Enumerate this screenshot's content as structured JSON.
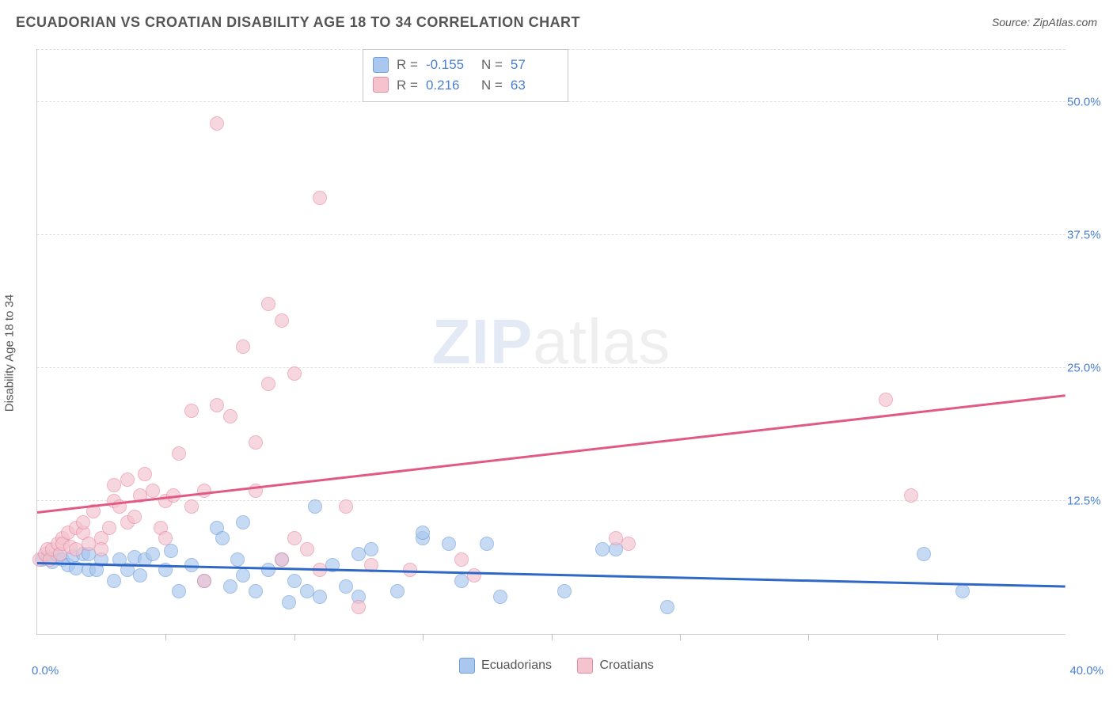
{
  "title": "ECUADORIAN VS CROATIAN DISABILITY AGE 18 TO 34 CORRELATION CHART",
  "source_prefix": "Source: ",
  "source_name": "ZipAtlas.com",
  "y_axis_title": "Disability Age 18 to 34",
  "watermark_left": "ZIP",
  "watermark_right": "atlas",
  "chart": {
    "type": "scatter",
    "xlim": [
      0,
      40
    ],
    "ylim": [
      0,
      55
    ],
    "x_origin_label": "0.0%",
    "x_max_label": "40.0%",
    "y_ticks": [
      12.5,
      25.0,
      37.5,
      50.0
    ],
    "y_tick_labels": [
      "12.5%",
      "25.0%",
      "37.5%",
      "50.0%"
    ],
    "x_minor_ticks": [
      5,
      10,
      15,
      20,
      25,
      30,
      35
    ],
    "background_color": "#ffffff",
    "grid_color": "#e0e0e0",
    "axis_color": "#d0d0d0",
    "tick_label_color": "#4a7fd4",
    "marker_radius": 9,
    "marker_opacity": 0.35,
    "series": [
      {
        "name": "Ecuadorians",
        "fill": "#a9c7ef",
        "stroke": "#6f9ed9",
        "trend_color": "#2f68c6",
        "R": "-0.155",
        "N": "57",
        "trend": {
          "x1": 0,
          "y1": 6.8,
          "x2": 40,
          "y2": 4.6
        },
        "points": [
          [
            0.2,
            7.0
          ],
          [
            0.4,
            7.2
          ],
          [
            0.6,
            6.8
          ],
          [
            0.8,
            7.4
          ],
          [
            1.0,
            7.0
          ],
          [
            1.2,
            6.5
          ],
          [
            1.4,
            7.3
          ],
          [
            1.5,
            6.2
          ],
          [
            1.8,
            7.5
          ],
          [
            2.0,
            7.5
          ],
          [
            2.0,
            6.0
          ],
          [
            2.3,
            6.0
          ],
          [
            2.5,
            7.0
          ],
          [
            3.0,
            5.0
          ],
          [
            3.2,
            7.0
          ],
          [
            3.5,
            6.0
          ],
          [
            3.8,
            7.2
          ],
          [
            4.0,
            5.5
          ],
          [
            4.2,
            7.0
          ],
          [
            4.5,
            7.5
          ],
          [
            5.0,
            6.0
          ],
          [
            5.2,
            7.8
          ],
          [
            5.5,
            4.0
          ],
          [
            6.0,
            6.5
          ],
          [
            6.5,
            5.0
          ],
          [
            7.0,
            10.0
          ],
          [
            7.2,
            9.0
          ],
          [
            7.5,
            4.5
          ],
          [
            7.8,
            7.0
          ],
          [
            8.0,
            5.5
          ],
          [
            8.0,
            10.5
          ],
          [
            8.5,
            4.0
          ],
          [
            9.0,
            6.0
          ],
          [
            9.5,
            7.0
          ],
          [
            9.8,
            3.0
          ],
          [
            10.0,
            5.0
          ],
          [
            10.5,
            4.0
          ],
          [
            10.8,
            12.0
          ],
          [
            11.0,
            3.5
          ],
          [
            11.5,
            6.5
          ],
          [
            12.0,
            4.5
          ],
          [
            12.5,
            3.5
          ],
          [
            12.5,
            7.5
          ],
          [
            13.0,
            8.0
          ],
          [
            14.0,
            4.0
          ],
          [
            15.0,
            9.0
          ],
          [
            15.0,
            9.5
          ],
          [
            16.0,
            8.5
          ],
          [
            16.5,
            5.0
          ],
          [
            17.5,
            8.5
          ],
          [
            18.0,
            3.5
          ],
          [
            20.5,
            4.0
          ],
          [
            22.0,
            8.0
          ],
          [
            22.5,
            8.0
          ],
          [
            24.5,
            2.5
          ],
          [
            34.5,
            7.5
          ],
          [
            36.0,
            4.0
          ]
        ]
      },
      {
        "name": "Croatians",
        "fill": "#f4c3ce",
        "stroke": "#e88ba2",
        "trend_color": "#e05a84",
        "R": "0.216",
        "N": "63",
        "trend": {
          "x1": 0,
          "y1": 11.5,
          "x2": 40,
          "y2": 22.5
        },
        "points": [
          [
            0.1,
            7.0
          ],
          [
            0.3,
            7.5
          ],
          [
            0.4,
            8.0
          ],
          [
            0.5,
            7.0
          ],
          [
            0.6,
            8.0
          ],
          [
            0.8,
            8.5
          ],
          [
            0.9,
            7.5
          ],
          [
            1.0,
            9.0
          ],
          [
            1.0,
            8.5
          ],
          [
            1.2,
            9.5
          ],
          [
            1.3,
            8.2
          ],
          [
            1.5,
            10.0
          ],
          [
            1.5,
            8.0
          ],
          [
            1.8,
            9.5
          ],
          [
            1.8,
            10.5
          ],
          [
            2.0,
            8.5
          ],
          [
            2.2,
            11.5
          ],
          [
            2.5,
            9.0
          ],
          [
            2.5,
            8.0
          ],
          [
            2.8,
            10.0
          ],
          [
            3.0,
            12.5
          ],
          [
            3.0,
            14.0
          ],
          [
            3.2,
            12.0
          ],
          [
            3.5,
            14.5
          ],
          [
            3.5,
            10.5
          ],
          [
            3.8,
            11.0
          ],
          [
            4.0,
            13.0
          ],
          [
            4.2,
            15.0
          ],
          [
            4.5,
            13.5
          ],
          [
            4.8,
            10.0
          ],
          [
            5.0,
            9.0
          ],
          [
            5.0,
            12.5
          ],
          [
            5.3,
            13.0
          ],
          [
            5.5,
            17.0
          ],
          [
            6.0,
            12.0
          ],
          [
            6.0,
            21.0
          ],
          [
            6.5,
            5.0
          ],
          [
            6.5,
            13.5
          ],
          [
            7.0,
            21.5
          ],
          [
            7.0,
            48.0
          ],
          [
            7.5,
            20.5
          ],
          [
            8.0,
            27.0
          ],
          [
            8.5,
            18.0
          ],
          [
            8.5,
            13.5
          ],
          [
            9.0,
            31.0
          ],
          [
            9.0,
            23.5
          ],
          [
            9.5,
            29.5
          ],
          [
            9.5,
            7.0
          ],
          [
            10.0,
            24.5
          ],
          [
            10.0,
            9.0
          ],
          [
            10.5,
            8.0
          ],
          [
            11.0,
            6.0
          ],
          [
            11.0,
            41.0
          ],
          [
            12.0,
            12.0
          ],
          [
            12.5,
            2.5
          ],
          [
            13.0,
            6.5
          ],
          [
            14.5,
            6.0
          ],
          [
            16.5,
            7.0
          ],
          [
            17.0,
            5.5
          ],
          [
            22.5,
            9.0
          ],
          [
            23.0,
            8.5
          ],
          [
            33.0,
            22.0
          ],
          [
            34.0,
            13.0
          ]
        ]
      }
    ]
  },
  "legend_bottom": {
    "items": [
      {
        "label": "Ecuadorians",
        "fill": "#a9c7ef",
        "stroke": "#6f9ed9"
      },
      {
        "label": "Croatians",
        "fill": "#f4c3ce",
        "stroke": "#e88ba2"
      }
    ]
  }
}
